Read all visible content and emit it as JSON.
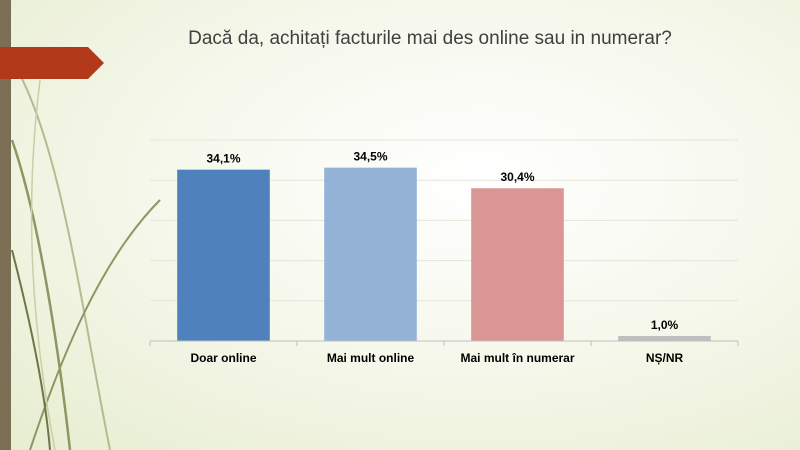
{
  "title": "Dacă da, achitați facturile mai des online sau in numerar?",
  "colors": {
    "accent_arrow": "#b23a1a",
    "side_bar": "#7a6f55"
  },
  "chart_data": {
    "type": "bar",
    "title": "Dacă da, achitați facturile mai des online sau in numerar?",
    "categories": [
      "Doar online",
      "Mai mult online",
      "Mai mult în numerar",
      "NȘ/NR"
    ],
    "values": [
      34.1,
      34.5,
      30.4,
      1.0
    ],
    "data_labels": [
      "34,1%",
      "34,5%",
      "30,4%",
      "1,0%"
    ],
    "colors": [
      "#4f81bd",
      "#95b3d7",
      "#da9694",
      "#bfbfbf"
    ],
    "ylim": [
      0,
      40
    ],
    "grid": true,
    "legend": "none",
    "xlabel": "",
    "ylabel": ""
  }
}
